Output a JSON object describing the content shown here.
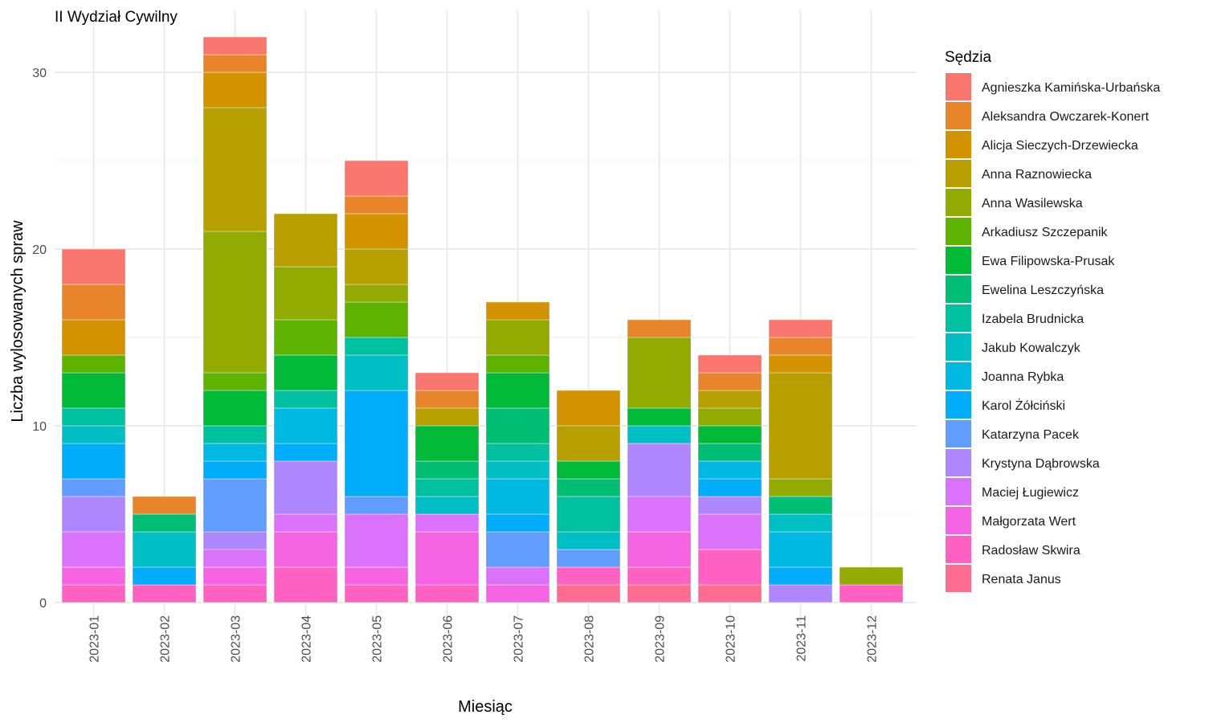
{
  "chart_data": {
    "type": "bar",
    "stacked": true,
    "title": "II Wydział Cywilny",
    "xlabel": "Miesiąc",
    "ylabel": "Liczba wylosowanych spraw",
    "legend_title": "Sędzia",
    "legend_position": "right",
    "grid": true,
    "ylim": [
      0,
      32
    ],
    "y_ticks": [
      "0",
      "10",
      "20",
      "30"
    ],
    "y_tick_values": [
      0,
      10,
      20,
      30
    ],
    "categories": [
      "2023-01",
      "2023-02",
      "2023-03",
      "2023-04",
      "2023-05",
      "2023-06",
      "2023-07",
      "2023-08",
      "2023-09",
      "2023-10",
      "2023-11",
      "2023-12"
    ],
    "series": [
      {
        "name": "Agnieszka Kamińska-Urbańska",
        "color": "#F8766D",
        "values": [
          2,
          0,
          1,
          0,
          2,
          1,
          0,
          0,
          0,
          1,
          1,
          0
        ]
      },
      {
        "name": "Aleksandra Owczarek-Konert",
        "color": "#E8852B",
        "values": [
          2,
          1,
          1,
          0,
          1,
          1,
          0,
          0,
          1,
          1,
          1,
          0
        ]
      },
      {
        "name": "Alicja Sieczych-Drzewiecka",
        "color": "#D39200",
        "values": [
          2,
          0,
          2,
          0,
          2,
          0,
          1,
          2,
          0,
          0,
          1,
          0
        ]
      },
      {
        "name": "Anna Raznowiecka",
        "color": "#B79F00",
        "values": [
          0,
          0,
          7,
          3,
          2,
          1,
          0,
          2,
          0,
          1,
          6,
          0
        ]
      },
      {
        "name": "Anna Wasilewska",
        "color": "#93AA00",
        "values": [
          0,
          0,
          8,
          3,
          1,
          0,
          2,
          0,
          4,
          1,
          1,
          1
        ]
      },
      {
        "name": "Arkadiusz Szczepanik",
        "color": "#5EB300",
        "values": [
          1,
          0,
          1,
          2,
          2,
          0,
          1,
          0,
          0,
          0,
          0,
          0
        ]
      },
      {
        "name": "Ewa Filipowska-Prusak",
        "color": "#00BA38",
        "values": [
          2,
          0,
          2,
          2,
          0,
          2,
          2,
          1,
          1,
          1,
          0,
          0
        ]
      },
      {
        "name": "Ewelina Leszczyńska",
        "color": "#00BF74",
        "values": [
          0,
          1,
          0,
          0,
          0,
          1,
          2,
          1,
          0,
          1,
          1,
          0
        ]
      },
      {
        "name": "Izabela Brudnicka",
        "color": "#00C19F",
        "values": [
          1,
          0,
          1,
          1,
          1,
          1,
          1,
          2,
          0,
          0,
          0,
          0
        ]
      },
      {
        "name": "Jakub Kowalczyk",
        "color": "#00BFC4",
        "values": [
          1,
          2,
          0,
          0,
          2,
          1,
          1,
          1,
          1,
          0,
          1,
          0
        ]
      },
      {
        "name": "Joanna Rybka",
        "color": "#00B9E3",
        "values": [
          0,
          0,
          1,
          2,
          0,
          0,
          2,
          0,
          0,
          1,
          2,
          0
        ]
      },
      {
        "name": "Karol Żółciński",
        "color": "#00ADFA",
        "values": [
          2,
          1,
          1,
          1,
          6,
          0,
          1,
          0,
          0,
          1,
          1,
          0
        ]
      },
      {
        "name": "Katarzyna Pacek",
        "color": "#619CFF",
        "values": [
          1,
          0,
          3,
          0,
          1,
          0,
          2,
          1,
          0,
          0,
          0,
          0
        ]
      },
      {
        "name": "Krystyna Dąbrowska",
        "color": "#AE87FF",
        "values": [
          2,
          0,
          1,
          3,
          0,
          0,
          0,
          0,
          3,
          1,
          1,
          0
        ]
      },
      {
        "name": "Maciej Ługiewicz",
        "color": "#DB72FB",
        "values": [
          2,
          0,
          1,
          1,
          3,
          1,
          1,
          0,
          2,
          2,
          0,
          0
        ]
      },
      {
        "name": "Małgorzata Wert",
        "color": "#F564E3",
        "values": [
          1,
          0,
          1,
          2,
          1,
          3,
          1,
          0,
          2,
          0,
          0,
          0
        ]
      },
      {
        "name": "Radosław Skwira",
        "color": "#FF61C3",
        "values": [
          1,
          1,
          1,
          2,
          1,
          1,
          0,
          1,
          1,
          2,
          0,
          1
        ]
      },
      {
        "name": "Renata Janus",
        "color": "#FF6C91",
        "values": [
          0,
          0,
          0,
          0,
          0,
          0,
          0,
          1,
          1,
          1,
          0,
          0
        ]
      }
    ]
  }
}
